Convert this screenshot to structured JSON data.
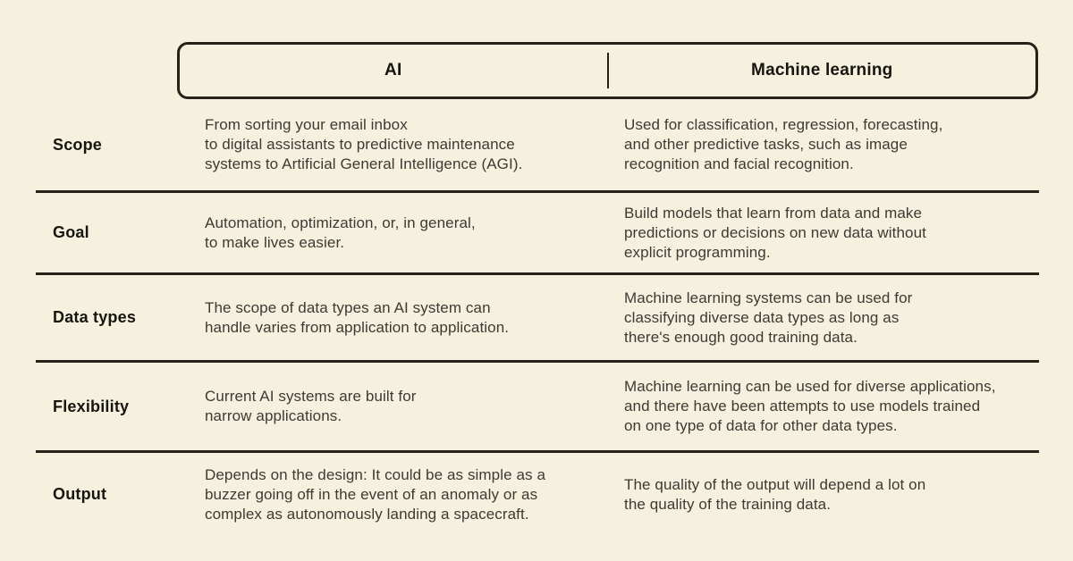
{
  "page": {
    "background_color": "#f5f1de",
    "line_color": "#26221a",
    "label_text_color": "#17150f",
    "body_text_color": "#3d3a33"
  },
  "header": {
    "col_ai": "AI",
    "col_ml": "Machine learning"
  },
  "rows": [
    {
      "label": "Scope",
      "ai": "From sorting your email inbox\nto digital assistants to predictive maintenance\nsystems to Artificial General Intelligence (AGI).",
      "ml": "Used for classification, regression, forecasting,\nand other predictive tasks, such as image\nrecognition and facial recognition."
    },
    {
      "label": "Goal",
      "ai": "Automation, optimization, or, in general,\nto make lives easier.",
      "ml": "Build models that learn from data and make\npredictions or decisions on new data without\nexplicit programming."
    },
    {
      "label": "Data types",
      "ai": "The scope of data types an AI system can\nhandle varies from application to application.",
      "ml": "Machine learning systems can be used for\nclassifying diverse data types as long as\nthere's enough good training data."
    },
    {
      "label": "Flexibility",
      "ai": "Current AI systems are built for\nnarrow applications.",
      "ml": "Machine learning can be used for diverse applications,\nand there have been attempts to use models trained\non one type of data for other data types."
    },
    {
      "label": "Output",
      "ai": "Depends on the design: It could be as simple as a\nbuzzer going off in the event of an anomaly or as\ncomplex as autonomously landing a spacecraft.",
      "ml": "The quality of the output will depend a lot on\nthe quality of the training data."
    }
  ]
}
